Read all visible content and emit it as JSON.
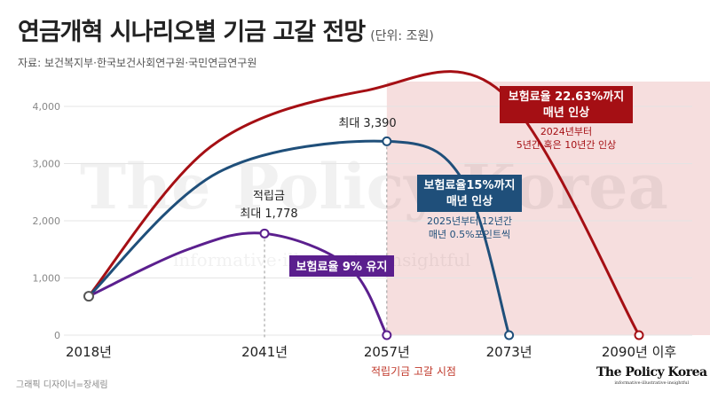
{
  "header": {
    "title": "연금개혁 시나리오별 기금 고갈 전망",
    "unit": "(단위: 조원)",
    "source": "자료: 보건복지부·한국보건사회연구원·국민연금연구원"
  },
  "footer": {
    "credit": "그래픽 디자이너=장세림",
    "brand": "The Policy Korea",
    "brand_tagline": "informative·illustrative·insightful"
  },
  "watermark": {
    "main": "The Policy Korea",
    "tagline": "informative·illustrative·insightful"
  },
  "colors": {
    "red": "#a50f14",
    "blue": "#1f4f7a",
    "purple": "#5b1f8e",
    "depletion_zone": "#f6dede",
    "axis_grid": "#e4e4e4"
  },
  "chart_data": {
    "type": "line",
    "title": "연금개혁 시나리오별 기금 고갈 전망",
    "unit": "조원",
    "x_ticks": [
      {
        "value": 2018,
        "label": "2018년"
      },
      {
        "value": 2041,
        "label": "2041년"
      },
      {
        "value": 2057,
        "label": "2057년"
      },
      {
        "value": 2073,
        "label": "2073년"
      },
      {
        "value": 2090,
        "label": "2090년 이후"
      }
    ],
    "y_ticks": [
      {
        "value": 0,
        "label": "0"
      },
      {
        "value": 1000,
        "label": "1,000"
      },
      {
        "value": 2000,
        "label": "2,000"
      },
      {
        "value": 3000,
        "label": "3,000"
      },
      {
        "value": 4000,
        "label": "4,000"
      }
    ],
    "xlim": [
      2018,
      2090
    ],
    "ylim": [
      0,
      4000
    ],
    "depletion_zone_from": 2057,
    "depletion_zone_label": "적립기금 고갈 시점",
    "series": [
      {
        "key": "red",
        "color": "#a50f14",
        "points": [
          [
            2018,
            680
          ],
          [
            2034,
            3300
          ],
          [
            2054,
            4270
          ],
          [
            2072,
            4250
          ],
          [
            2090,
            0
          ]
        ],
        "box_label_1": "보험료율 22.63%까지",
        "box_label_2": "매년 인상",
        "caption_1": "2024년부터",
        "caption_2": "5년간 혹은 10년간 인상"
      },
      {
        "key": "blue",
        "color": "#1f4f7a",
        "points": [
          [
            2018,
            680
          ],
          [
            2035,
            2850
          ],
          [
            2057,
            3390
          ],
          [
            2067,
            2700
          ],
          [
            2073,
            0
          ]
        ],
        "peak": {
          "x": 2057,
          "y": 3390
        },
        "peak_label": "최대 3,390",
        "box_label_1": "보험료율15%까지",
        "box_label_2": "매년 인상",
        "caption_1": "2025년부터 12년간",
        "caption_2": "매년 0.5%포인트씩"
      },
      {
        "key": "purple",
        "color": "#5b1f8e",
        "points": [
          [
            2018,
            680
          ],
          [
            2031,
            1500
          ],
          [
            2041,
            1778
          ],
          [
            2052,
            1200
          ],
          [
            2057,
            0
          ]
        ],
        "peak": {
          "x": 2041,
          "y": 1778
        },
        "peak_label_1": "적립금",
        "peak_label_2": "최대 1,778",
        "box_label": "보험료율 9% 유지"
      }
    ]
  }
}
